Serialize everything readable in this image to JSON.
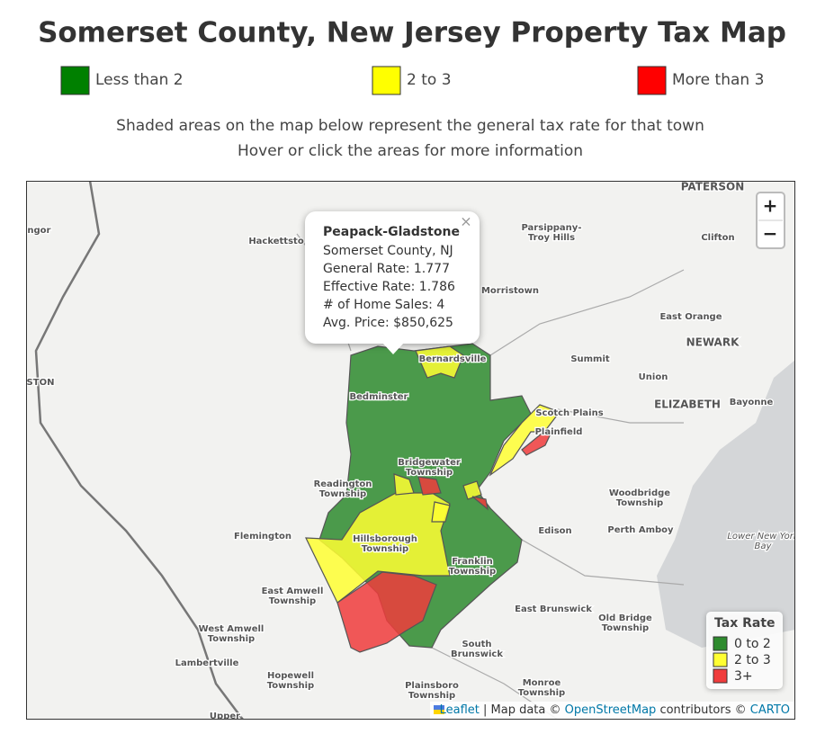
{
  "header": {
    "title": "Somerset County, New Jersey Property Tax Map"
  },
  "legend": [
    {
      "label": "Less than 2",
      "color": "#008000"
    },
    {
      "label": "2 to 3",
      "color": "#ffff00"
    },
    {
      "label": "More than 3",
      "color": "#ff0000"
    }
  ],
  "intro": [
    "Shaded areas on the map below represent the general tax rate for that town",
    "Hover or click the areas for more information"
  ],
  "popup": {
    "title": "Peapack-Gladstone",
    "close": "×",
    "lines": [
      "Somerset County, NJ",
      "General Rate: 1.777",
      "Effective Rate: 1.786",
      "# of Home Sales: 4",
      "Avg. Price: $850,625"
    ]
  },
  "zoom": {
    "in": "+",
    "out": "−"
  },
  "map_legend": {
    "title": "Tax Rate",
    "items": [
      {
        "label": "0 to 2",
        "color": "#2e8b2e"
      },
      {
        "label": "2 to 3",
        "color": "#ffff33"
      },
      {
        "label": "3+",
        "color": "#f03c3c"
      }
    ]
  },
  "places": [
    [
      "angor"
    ],
    [
      "Hackettsto"
    ],
    [
      "Parsippany-",
      "Troy Hills"
    ],
    [
      "PATERSON"
    ],
    [
      "Clifton"
    ],
    [
      "Morristown"
    ],
    [
      "East Orange"
    ],
    [
      "NEWARK"
    ],
    [
      "Summit"
    ],
    [
      "Bernardsville"
    ],
    [
      "Union"
    ],
    [
      "STON"
    ],
    [
      "Bedminster"
    ],
    [
      "ELIZABETH"
    ],
    [
      "Bayonne"
    ],
    [
      "Scotch Plains"
    ],
    [
      "Plainfield"
    ],
    [
      "Bridgewater",
      "Township"
    ],
    [
      "Readington",
      "Township"
    ],
    [
      "Woodbridge",
      "Township"
    ],
    [
      "Flemington"
    ],
    [
      "Hillsborough",
      "Township"
    ],
    [
      "Edison"
    ],
    [
      "Perth Amboy"
    ],
    [
      "Franklin",
      "Township"
    ],
    [
      "East Amwell",
      "Township"
    ],
    [
      "East Brunswick"
    ],
    [
      "Old Bridge",
      "Township"
    ],
    [
      "West Amwell",
      "Township"
    ],
    [
      "South",
      "Brunswick"
    ],
    [
      "Lambertville"
    ],
    [
      "Hopewell",
      "Township"
    ],
    [
      "Plainsboro",
      "Township"
    ],
    [
      "Monroe",
      "Township"
    ],
    [
      "Upper"
    ],
    [
      "Lower New York",
      "Bay"
    ]
  ],
  "attribution": {
    "leaflet": "Leaflet",
    "data": " | Map data © ",
    "osm": "OpenStreetMap",
    "contrib": " contributors © ",
    "carto": "CARTO"
  }
}
